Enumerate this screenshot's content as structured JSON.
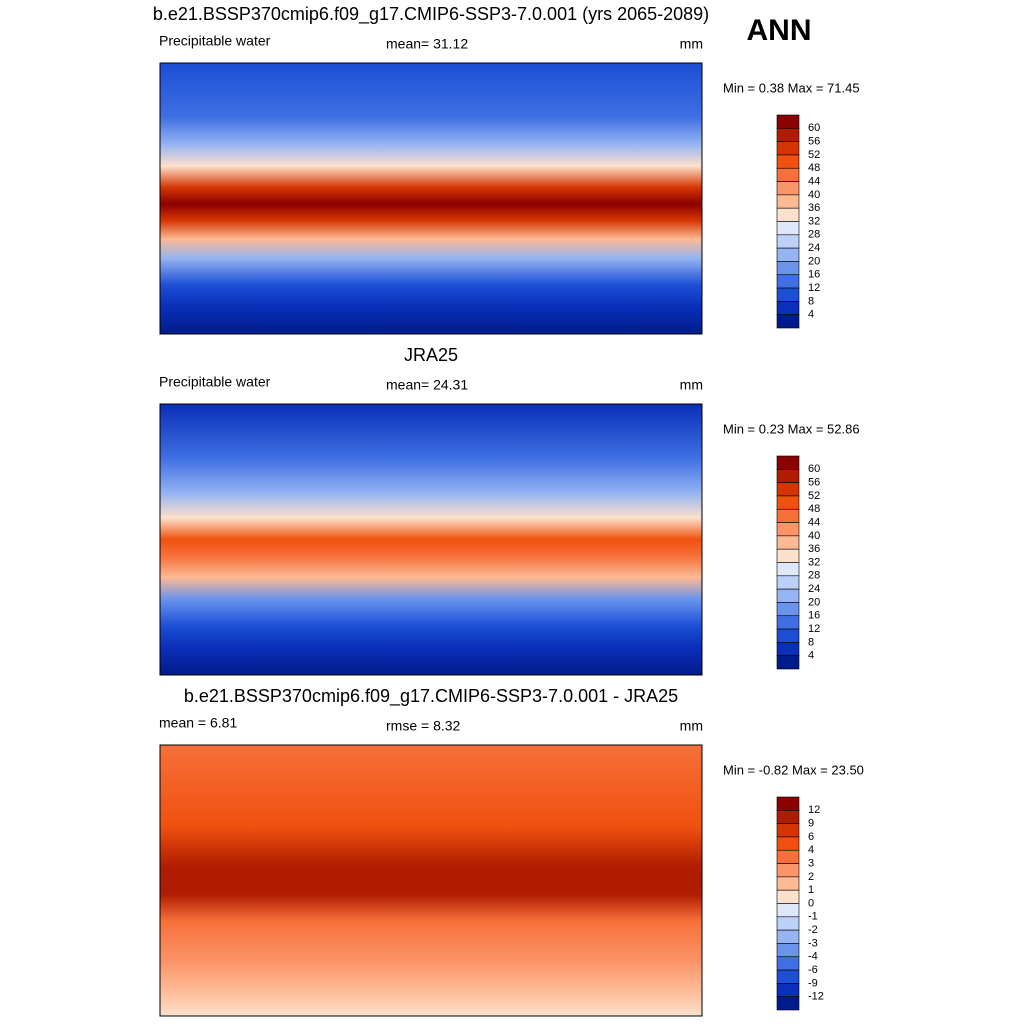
{
  "header": {
    "label": "ANN"
  },
  "colors": [
    "#8b0000",
    "#b01c00",
    "#d53500",
    "#f0510f",
    "#f7703a",
    "#fb9468",
    "#fdb994",
    "#fde0cc",
    "#dfe8fb",
    "#bdd0f7",
    "#95b4f2",
    "#6a93ec",
    "#3f6fe3",
    "#1c4ed6",
    "#0a2fb8",
    "#001b8b"
  ],
  "panels": [
    {
      "title": "b.e21.BSSP370cmip6.f09_g17.CMIP6-SSP3-7.0.001 (yrs 2065-2089)",
      "left": "Precipitable water",
      "center": "mean=  31.12",
      "right": "mm",
      "minmax": "Min =   0.38 Max =  71.45",
      "levels": [
        "60",
        "56",
        "52",
        "48",
        "44",
        "40",
        "36",
        "32",
        "28",
        "24",
        "20",
        "16",
        "12",
        "8",
        "4"
      ]
    },
    {
      "title": "JRA25",
      "left": "Precipitable water",
      "center": "mean=  24.31",
      "right": "mm",
      "minmax": "Min =   0.23 Max =  52.86",
      "levels": [
        "60",
        "56",
        "52",
        "48",
        "44",
        "40",
        "36",
        "32",
        "28",
        "24",
        "20",
        "16",
        "12",
        "8",
        "4"
      ]
    },
    {
      "title": "b.e21.BSSP370cmip6.f09_g17.CMIP6-SSP3-7.0.001 - JRA25",
      "left": "mean =   6.81",
      "center": "rmse =   8.32",
      "right": "mm",
      "minmax": "Min =  -0.82 Max =  23.50",
      "levels": [
        "12",
        "9",
        "6",
        "4",
        "3",
        "2",
        "1",
        "0",
        "-1",
        "-2",
        "-3",
        "-4",
        "-6",
        "-9",
        "-12"
      ]
    }
  ]
}
